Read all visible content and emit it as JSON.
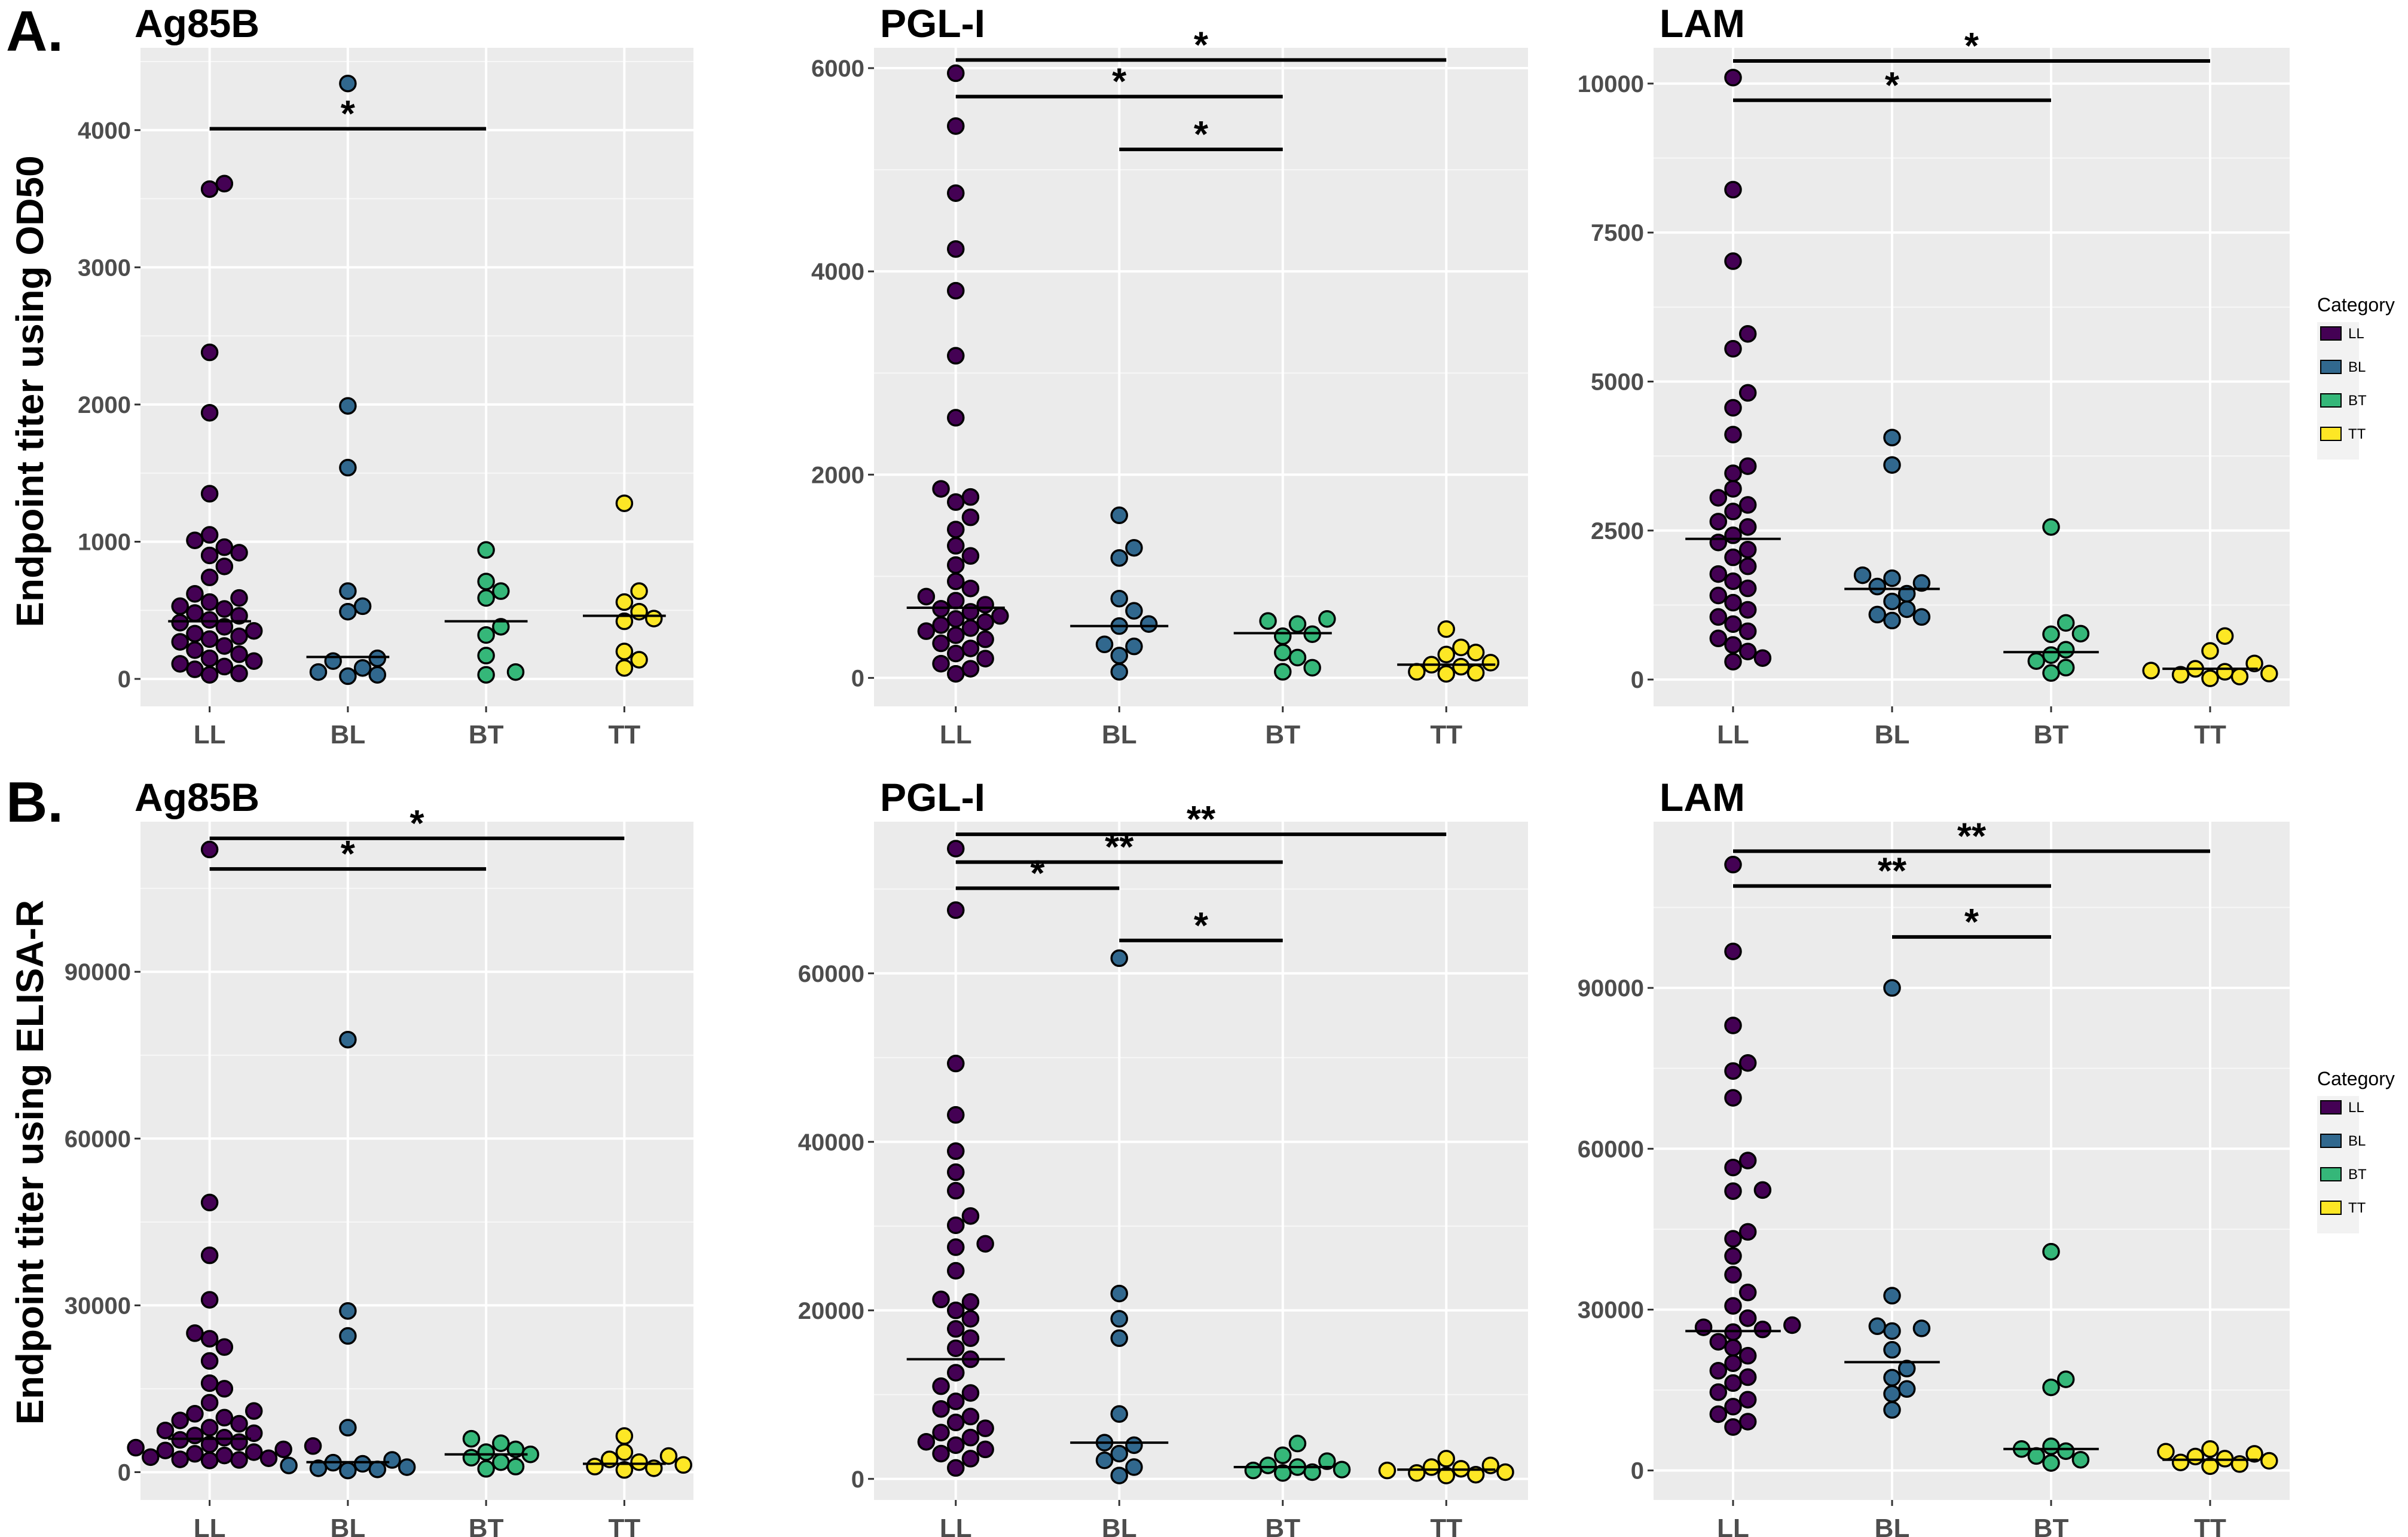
{
  "row_labels": [
    "A.",
    "B."
  ],
  "y_titles": [
    "Endpoint titer using OD50",
    "Endpoint titer using ELISA-R"
  ],
  "legend": {
    "title": "Category",
    "items": [
      {
        "label": "LL",
        "color": "#440154"
      },
      {
        "label": "BL",
        "color": "#31688e"
      },
      {
        "label": "BT",
        "color": "#35b779"
      },
      {
        "label": "TT",
        "color": "#fde725"
      }
    ]
  },
  "chart_data": [
    {
      "type": "scatter",
      "title": "Ag85B",
      "row": 0,
      "col": 0,
      "categories": [
        "LL",
        "BL",
        "BT",
        "TT"
      ],
      "ylim": [
        -200,
        4600
      ],
      "yticks": [
        0,
        1000,
        2000,
        3000,
        4000
      ],
      "medians": [
        420,
        160,
        420,
        460
      ],
      "points": {
        "LL": [
          3610,
          3570,
          2380,
          1940,
          1350,
          1050,
          1010,
          960,
          920,
          900,
          820,
          740,
          620,
          590,
          560,
          530,
          510,
          480,
          460,
          430,
          410,
          380,
          350,
          330,
          310,
          290,
          270,
          240,
          210,
          180,
          150,
          130,
          110,
          90,
          70,
          40,
          30
        ],
        "BL": [
          4340,
          1990,
          1540,
          640,
          530,
          490,
          150,
          130,
          80,
          50,
          30,
          20
        ],
        "BT": [
          940,
          710,
          640,
          590,
          380,
          320,
          170,
          50,
          30
        ],
        "TT": [
          1280,
          640,
          560,
          490,
          440,
          420,
          200,
          140,
          80
        ]
      },
      "significance": [
        {
          "from": "LL",
          "to": "BT",
          "y": 4010,
          "label": "*"
        }
      ]
    },
    {
      "type": "scatter",
      "title": "PGL-I",
      "row": 0,
      "col": 1,
      "categories": [
        "LL",
        "BL",
        "BT",
        "TT"
      ],
      "ylim": [
        -280,
        6200
      ],
      "yticks": [
        0,
        2000,
        4000,
        6000
      ],
      "medians": [
        690,
        510,
        440,
        130
      ],
      "points": {
        "LL": [
          5950,
          5430,
          4770,
          4220,
          3810,
          3170,
          2560,
          1860,
          1780,
          1730,
          1580,
          1460,
          1300,
          1200,
          1110,
          950,
          880,
          800,
          760,
          720,
          680,
          650,
          610,
          580,
          550,
          520,
          490,
          460,
          420,
          380,
          340,
          290,
          240,
          190,
          140,
          90,
          40
        ],
        "BL": [
          1600,
          1280,
          1180,
          780,
          660,
          530,
          510,
          330,
          310,
          220,
          60
        ],
        "BT": [
          580,
          560,
          530,
          430,
          410,
          250,
          200,
          100,
          60
        ],
        "TT": [
          480,
          300,
          250,
          230,
          150,
          130,
          110,
          60,
          50,
          40
        ]
      },
      "significance": [
        {
          "from": "LL",
          "to": "TT",
          "y": 6080,
          "label": "*"
        },
        {
          "from": "LL",
          "to": "BT",
          "y": 5720,
          "label": "*"
        },
        {
          "from": "BL",
          "to": "BT",
          "y": 5200,
          "label": "*"
        }
      ]
    },
    {
      "type": "scatter",
      "title": "LAM",
      "row": 0,
      "col": 2,
      "categories": [
        "LL",
        "BL",
        "BT",
        "TT"
      ],
      "ylim": [
        -450,
        10600
      ],
      "yticks": [
        0,
        2500,
        5000,
        7500,
        10000
      ],
      "medians": [
        2360,
        1520,
        460,
        180
      ],
      "points": {
        "LL": [
          10100,
          8220,
          7020,
          5800,
          5550,
          4810,
          4560,
          4110,
          3580,
          3460,
          3200,
          3050,
          2930,
          2820,
          2650,
          2560,
          2420,
          2300,
          2180,
          2050,
          1900,
          1770,
          1650,
          1530,
          1410,
          1290,
          1170,
          1050,
          930,
          810,
          690,
          580,
          470,
          360,
          300
        ],
        "BL": [
          4060,
          3600,
          1750,
          1700,
          1620,
          1560,
          1440,
          1310,
          1180,
          1090,
          1050,
          990
        ],
        "BT": [
          2560,
          950,
          770,
          760,
          500,
          410,
          310,
          200,
          110
        ],
        "TT": [
          730,
          480,
          270,
          180,
          150,
          130,
          100,
          80,
          50,
          20
        ]
      },
      "significance": [
        {
          "from": "LL",
          "to": "TT",
          "y": 10380,
          "label": "*"
        },
        {
          "from": "LL",
          "to": "BT",
          "y": 9720,
          "label": "*"
        }
      ]
    },
    {
      "type": "scatter",
      "title": "Ag85B",
      "row": 1,
      "col": 0,
      "categories": [
        "LL",
        "BL",
        "BT",
        "TT"
      ],
      "ylim": [
        -5000,
        117000
      ],
      "yticks": [
        0,
        30000,
        60000,
        90000
      ],
      "medians": [
        6000,
        1800,
        3200,
        1500
      ],
      "points": {
        "LL": [
          112000,
          48500,
          39000,
          31000,
          25000,
          24000,
          22500,
          20000,
          16000,
          15000,
          12500,
          11000,
          10500,
          9800,
          9300,
          8700,
          8000,
          7500,
          7000,
          6600,
          6200,
          5800,
          5400,
          5000,
          4700,
          4400,
          4100,
          3900,
          3600,
          3300,
          3000,
          2700,
          2500,
          2300,
          2200,
          2100
        ],
        "BL": [
          77800,
          29000,
          24500,
          8000,
          2200,
          1700,
          1500,
          1200,
          900,
          700,
          500,
          300
        ],
        "BT": [
          6000,
          5200,
          4100,
          3600,
          3200,
          2600,
          1800,
          1000,
          600
        ],
        "TT": [
          6500,
          3600,
          2900,
          2300,
          1800,
          1300,
          1000,
          700,
          400
        ]
      },
      "significance": [
        {
          "from": "LL",
          "to": "TT",
          "y": 114000,
          "label": "*"
        },
        {
          "from": "LL",
          "to": "BT",
          "y": 108500,
          "label": "*"
        }
      ]
    },
    {
      "type": "scatter",
      "title": "PGL-I",
      "row": 1,
      "col": 1,
      "categories": [
        "LL",
        "BL",
        "BT",
        "TT"
      ],
      "ylim": [
        -2500,
        78000
      ],
      "yticks": [
        0,
        20000,
        40000,
        60000
      ],
      "medians": [
        14200,
        4300,
        1400,
        1100
      ],
      "points": {
        "LL": [
          74800,
          67500,
          49300,
          43200,
          38900,
          36400,
          34200,
          31200,
          30100,
          27900,
          27500,
          24700,
          21300,
          21000,
          20000,
          19000,
          17800,
          16700,
          15500,
          14200,
          12600,
          11000,
          10200,
          9200,
          8300,
          7400,
          6700,
          6000,
          5500,
          4900,
          4400,
          4000,
          3500,
          3000,
          2400,
          1300
        ],
        "BL": [
          61800,
          22000,
          19000,
          16700,
          7700,
          4300,
          4000,
          3000,
          2200,
          1400,
          400
        ],
        "BT": [
          4200,
          2800,
          2100,
          1600,
          1400,
          1100,
          1000,
          800,
          700
        ],
        "TT": [
          2400,
          1600,
          1400,
          1200,
          1000,
          800,
          700,
          500,
          400
        ]
      },
      "significance": [
        {
          "from": "LL",
          "to": "TT",
          "y": 76500,
          "label": "**"
        },
        {
          "from": "LL",
          "to": "BT",
          "y": 73200,
          "label": "**"
        },
        {
          "from": "LL",
          "to": "BL",
          "y": 70100,
          "label": "*"
        },
        {
          "from": "BL",
          "to": "BT",
          "y": 63900,
          "label": "*"
        }
      ]
    },
    {
      "type": "scatter",
      "title": "LAM",
      "row": 1,
      "col": 2,
      "categories": [
        "LL",
        "BL",
        "BT",
        "TT"
      ],
      "ylim": [
        -5500,
        121000
      ],
      "yticks": [
        0,
        30000,
        60000,
        90000
      ],
      "medians": [
        26000,
        20200,
        4000,
        2000
      ],
      "points": {
        "LL": [
          113000,
          96800,
          83000,
          76000,
          74500,
          69500,
          57800,
          56500,
          52300,
          52100,
          44500,
          43200,
          40000,
          36500,
          33200,
          30700,
          28400,
          27100,
          26700,
          26300,
          25800,
          24000,
          22900,
          21400,
          20000,
          18600,
          17400,
          16300,
          14600,
          13200,
          11900,
          10500,
          9100,
          8100
        ],
        "BL": [
          90000,
          32600,
          26900,
          26500,
          26000,
          22500,
          19000,
          17300,
          15200,
          14300,
          11300
        ],
        "BT": [
          40800,
          17000,
          15500,
          4500,
          4000,
          3600,
          2700,
          2000,
          1400
        ],
        "TT": [
          4000,
          3500,
          3100,
          2600,
          2200,
          1800,
          1500,
          1200,
          800
        ]
      },
      "significance": [
        {
          "from": "LL",
          "to": "TT",
          "y": 115500,
          "label": "**"
        },
        {
          "from": "LL",
          "to": "BT",
          "y": 109000,
          "label": "**"
        },
        {
          "from": "BL",
          "to": "BT",
          "y": 99500,
          "label": "*"
        }
      ]
    }
  ]
}
